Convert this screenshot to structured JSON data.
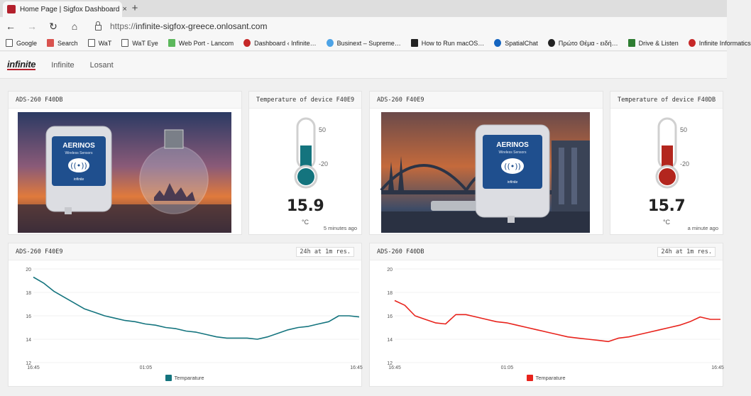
{
  "browser": {
    "tab_title": "Home Page | Sigfox Dashboard",
    "tab_close": "×",
    "new_tab": "+",
    "url_scheme": "https://",
    "url_host": "infinite-sigfox-greece.onlosant.com",
    "bookmarks": [
      {
        "label": "Google",
        "icon": "page-icon"
      },
      {
        "label": "Search",
        "icon": "search-icon"
      },
      {
        "label": "WaT",
        "icon": "page-icon"
      },
      {
        "label": "WaT Eye",
        "icon": "page-icon"
      },
      {
        "label": "Web Port - Lancom",
        "icon": "webport-icon"
      },
      {
        "label": "Dashboard ‹ Infinite…",
        "icon": "dashboard-icon"
      },
      {
        "label": "Businext – Supreme…",
        "icon": "businext-icon"
      },
      {
        "label": "How to Run macOS…",
        "icon": "video-icon"
      },
      {
        "label": "SpatialChat",
        "icon": "spatialchat-icon"
      },
      {
        "label": "Πρώτο Θέμα - ειδή…",
        "icon": "news-icon"
      },
      {
        "label": "Drive & Listen",
        "icon": "drive-icon"
      },
      {
        "label": "Infinite Informatics",
        "icon": "infinite-icon"
      }
    ]
  },
  "app": {
    "logo_text": "infinite",
    "nav": [
      "Infinite",
      "Losant"
    ]
  },
  "blocks": {
    "image1_title": "ADS-260 F40DB",
    "gauge1": {
      "title": "Temperature of device F40E9",
      "value": "15.9",
      "unit": "°C",
      "ago": "5 minutes ago",
      "scale_max": "50",
      "scale_min": "-20",
      "color": "#14747e"
    },
    "image2_title": "ADS-260 F40E9",
    "gauge2": {
      "title": "Temperature of device F40DB",
      "value": "15.7",
      "unit": "°C",
      "ago": "a minute ago",
      "scale_max": "50",
      "scale_min": "-20",
      "color": "#b3261e"
    },
    "photo1": {
      "brand": "AERINOS",
      "subtitle": "Wireless Sensors",
      "mark": "infinite"
    },
    "photo2": {
      "brand": "AERINOS",
      "subtitle": "Wireless Sensors",
      "mark": "infinite"
    },
    "chart1": {
      "title": "ADS-260 F40E9",
      "resolution": "24h at 1m res."
    },
    "chart2": {
      "title": "ADS-260 F40DB",
      "resolution": "24h at 1m res."
    }
  },
  "chart_data": [
    {
      "type": "line",
      "y_ticks": [
        "20",
        "18",
        "16",
        "14",
        "12"
      ],
      "x_ticks": [
        "16:45",
        "01:05",
        "16:45"
      ],
      "ylim": [
        12,
        20
      ],
      "legend_position": "bottom-center",
      "color": "#14747e",
      "series": [
        {
          "name": "Temparature",
          "values": [
            19.3,
            18.8,
            18.1,
            17.6,
            17.1,
            16.6,
            16.3,
            16.0,
            15.8,
            15.6,
            15.5,
            15.3,
            15.2,
            15.0,
            14.9,
            14.7,
            14.6,
            14.4,
            14.2,
            14.1,
            14.1,
            14.1,
            14.0,
            14.2,
            14.5,
            14.8,
            15.0,
            15.1,
            15.3,
            15.5,
            16.0,
            16.0,
            15.9
          ]
        }
      ]
    },
    {
      "type": "line",
      "y_ticks": [
        "20",
        "18",
        "16",
        "14",
        "12"
      ],
      "x_ticks": [
        "16:45",
        "01:05",
        "16:45"
      ],
      "ylim": [
        12,
        20
      ],
      "legend_position": "bottom-center",
      "color": "#e8231c",
      "series": [
        {
          "name": "Temparature",
          "values": [
            17.3,
            16.9,
            16.0,
            15.7,
            15.4,
            15.3,
            16.1,
            16.1,
            15.9,
            15.7,
            15.5,
            15.4,
            15.2,
            15.0,
            14.8,
            14.6,
            14.4,
            14.2,
            14.1,
            14.0,
            13.9,
            13.8,
            14.1,
            14.2,
            14.4,
            14.6,
            14.8,
            15.0,
            15.2,
            15.5,
            15.9,
            15.7,
            15.7
          ]
        }
      ]
    }
  ]
}
